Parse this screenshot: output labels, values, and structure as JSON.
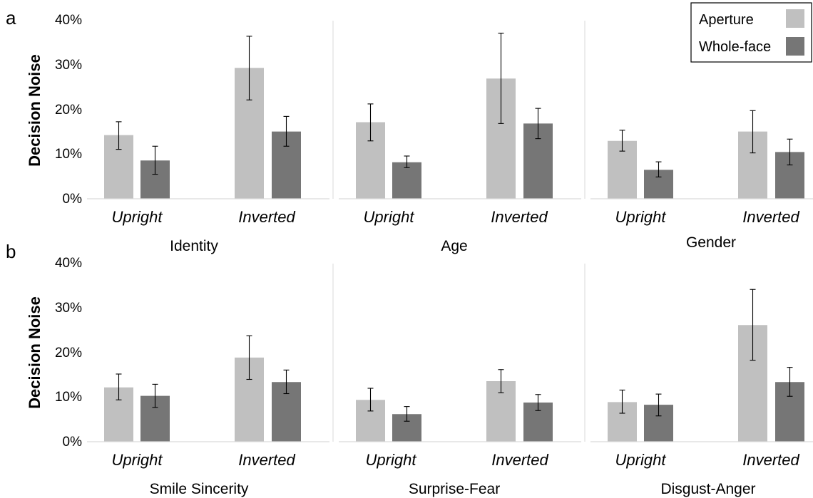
{
  "panels": [
    {
      "letter": "a",
      "ylabel": "Decision Noise"
    },
    {
      "letter": "b",
      "ylabel": "Decision Noise"
    }
  ],
  "legend": {
    "position": "top-right",
    "items": [
      {
        "label": "Aperture",
        "color": "#c0c0c0"
      },
      {
        "label": "Whole-face",
        "color": "#767676"
      }
    ]
  },
  "chart_data": [
    {
      "type": "bar",
      "panel": "a",
      "title": "Identity",
      "ylabel": "Decision Noise",
      "categories": [
        "Upright",
        "Inverted"
      ],
      "yticks": [
        "0%",
        "10%",
        "20%",
        "30%",
        "40%"
      ],
      "ylim": [
        0,
        40
      ],
      "series": [
        {
          "name": "Aperture",
          "values": [
            14.3,
            29.4
          ],
          "err_low": [
            11.1,
            22.2
          ],
          "err_high": [
            17.3,
            36.5
          ],
          "color": "#c0c0c0"
        },
        {
          "name": "Whole-face",
          "values": [
            8.6,
            15.1
          ],
          "err_low": [
            5.5,
            11.8
          ],
          "err_high": [
            11.8,
            18.5
          ],
          "color": "#767676"
        }
      ]
    },
    {
      "type": "bar",
      "panel": "a",
      "title": "Age",
      "ylabel": "Decision Noise",
      "categories": [
        "Upright",
        "Inverted"
      ],
      "yticks": [
        "0%",
        "10%",
        "20%",
        "30%",
        "40%"
      ],
      "ylim": [
        0,
        40
      ],
      "series": [
        {
          "name": "Aperture",
          "values": [
            17.2,
            27.0
          ],
          "err_low": [
            13.0,
            16.9
          ],
          "err_high": [
            21.3,
            37.2
          ],
          "color": "#c0c0c0"
        },
        {
          "name": "Whole-face",
          "values": [
            8.2,
            16.9
          ],
          "err_low": [
            7.0,
            13.5
          ],
          "err_high": [
            9.6,
            20.3
          ],
          "color": "#767676"
        }
      ]
    },
    {
      "type": "bar",
      "panel": "a",
      "title": "Gender",
      "ylabel": "Decision Noise",
      "categories": [
        "Upright",
        "Inverted"
      ],
      "yticks": [
        "0%",
        "10%",
        "20%",
        "30%",
        "40%"
      ],
      "ylim": [
        0,
        40
      ],
      "series": [
        {
          "name": "Aperture",
          "values": [
            13.0,
            15.1
          ],
          "err_low": [
            10.7,
            10.3
          ],
          "err_high": [
            15.4,
            19.8
          ],
          "color": "#c0c0c0"
        },
        {
          "name": "Whole-face",
          "values": [
            6.5,
            10.5
          ],
          "err_low": [
            4.9,
            7.6
          ],
          "err_high": [
            8.3,
            13.4
          ],
          "color": "#767676"
        }
      ]
    },
    {
      "type": "bar",
      "panel": "b",
      "title": "Smile Sincerity",
      "ylabel": "Decision Noise",
      "categories": [
        "Upright",
        "Inverted"
      ],
      "yticks": [
        "0%",
        "10%",
        "20%",
        "30%",
        "40%"
      ],
      "ylim": [
        0,
        40
      ],
      "series": [
        {
          "name": "Aperture",
          "values": [
            12.2,
            18.9
          ],
          "err_low": [
            9.4,
            14.0
          ],
          "err_high": [
            15.2,
            23.8
          ],
          "color": "#c0c0c0"
        },
        {
          "name": "Whole-face",
          "values": [
            10.3,
            13.4
          ],
          "err_low": [
            7.7,
            10.8
          ],
          "err_high": [
            12.9,
            16.1
          ],
          "color": "#767676"
        }
      ]
    },
    {
      "type": "bar",
      "panel": "b",
      "title": "Surprise-Fear",
      "ylabel": "Decision Noise",
      "categories": [
        "Upright",
        "Inverted"
      ],
      "yticks": [
        "0%",
        "10%",
        "20%",
        "30%",
        "40%"
      ],
      "ylim": [
        0,
        40
      ],
      "series": [
        {
          "name": "Aperture",
          "values": [
            9.4,
            13.6
          ],
          "err_low": [
            6.9,
            11.0
          ],
          "err_high": [
            12.0,
            16.2
          ],
          "color": "#c0c0c0"
        },
        {
          "name": "Whole-face",
          "values": [
            6.2,
            8.8
          ],
          "err_low": [
            4.6,
            7.0
          ],
          "err_high": [
            7.9,
            10.6
          ],
          "color": "#767676"
        }
      ]
    },
    {
      "type": "bar",
      "panel": "b",
      "title": "Disgust-Anger",
      "ylabel": "Decision Noise",
      "categories": [
        "Upright",
        "Inverted"
      ],
      "yticks": [
        "0%",
        "10%",
        "20%",
        "30%",
        "40%"
      ],
      "ylim": [
        0,
        40
      ],
      "series": [
        {
          "name": "Aperture",
          "values": [
            8.9,
            26.2
          ],
          "err_low": [
            6.4,
            18.3
          ],
          "err_high": [
            11.6,
            34.2
          ],
          "color": "#c0c0c0"
        },
        {
          "name": "Whole-face",
          "values": [
            8.3,
            13.4
          ],
          "err_low": [
            5.8,
            10.2
          ],
          "err_high": [
            10.7,
            16.7
          ],
          "color": "#767676"
        }
      ]
    }
  ]
}
